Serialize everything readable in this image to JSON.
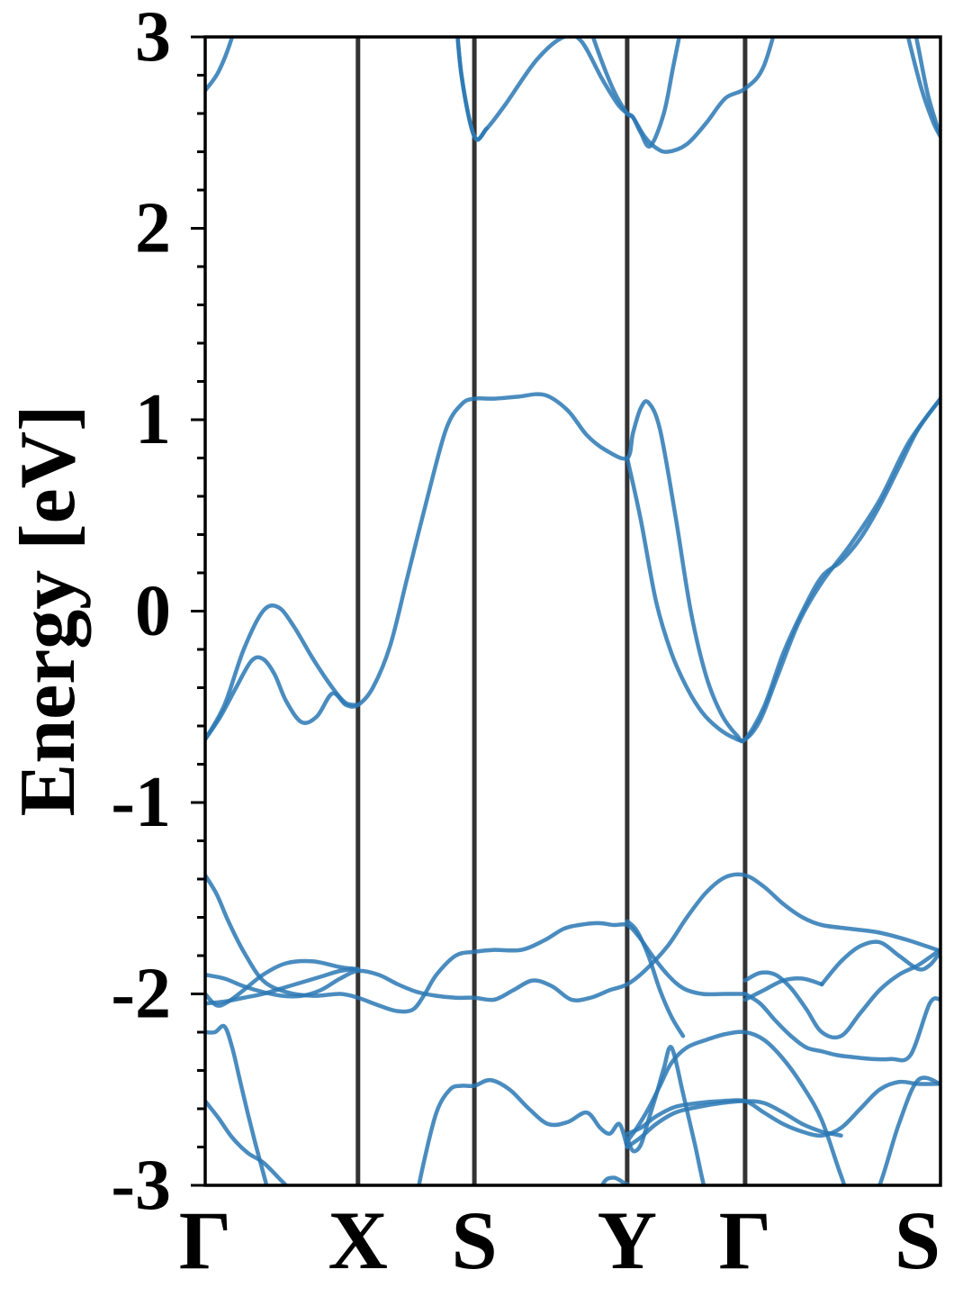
{
  "chart_data": {
    "type": "line",
    "title": "",
    "xlabel": "",
    "ylabel": "Energy [eV]",
    "ylim": [
      -3,
      3
    ],
    "y_ticks": [
      "-3",
      "-2",
      "-1",
      "0",
      "1",
      "2",
      "3"
    ],
    "y_minor_step": 0.2,
    "grid": false,
    "kpath_labels": [
      "Γ",
      "X",
      "S",
      "Y",
      "Γ",
      "S"
    ],
    "kpath_positions": [
      0,
      0.793,
      1.397,
      2.19,
      2.802,
      3.816
    ],
    "colors": {
      "band": "#2a78b4",
      "kline": "#333333"
    },
    "series": [
      {
        "x": [
          0,
          0.07,
          0.14,
          0.19
        ],
        "y": [
          2.72,
          2.82,
          3.0,
          3.2
        ]
      },
      {
        "x": [
          1.295,
          1.33,
          1.397,
          1.46,
          1.56,
          1.72,
          1.86,
          1.95,
          2.06,
          2.14,
          2.19,
          2.22,
          2.28,
          2.34,
          2.4,
          2.5,
          2.6,
          2.7,
          2.802,
          2.9,
          3.0
        ],
        "y": [
          3.2,
          2.8,
          2.48,
          2.52,
          2.65,
          2.88,
          3.0,
          2.98,
          2.78,
          2.65,
          2.6,
          2.58,
          2.48,
          2.42,
          2.4,
          2.44,
          2.55,
          2.68,
          2.73,
          2.85,
          3.2
        ]
      },
      {
        "x": [
          1.295,
          1.33,
          1.397,
          1.46
        ],
        "y": [
          3.2,
          2.8,
          2.48,
          2.52
        ]
      },
      {
        "x": [
          1.95,
          2.03,
          2.12,
          2.19,
          2.22,
          2.26,
          2.31,
          2.38,
          2.43,
          2.5
        ],
        "y": [
          3.2,
          2.95,
          2.72,
          2.6,
          2.58,
          2.5,
          2.43,
          2.6,
          2.85,
          3.2
        ]
      },
      {
        "x": [
          3.6,
          3.66,
          3.72,
          3.78,
          3.816
        ],
        "y": [
          3.2,
          2.95,
          2.72,
          2.55,
          2.48
        ]
      },
      {
        "x": [
          3.65,
          3.7,
          3.75,
          3.8,
          3.816
        ],
        "y": [
          3.2,
          2.95,
          2.7,
          2.53,
          2.48
        ]
      },
      {
        "x": [
          0,
          0.08,
          0.16,
          0.24,
          0.3,
          0.36,
          0.42,
          0.5,
          0.58,
          0.66,
          0.73,
          0.793,
          0.87,
          0.96,
          1.05,
          1.15,
          1.25,
          1.33,
          1.397,
          1.5,
          1.62,
          1.76,
          1.88,
          1.98,
          2.08,
          2.19,
          2.22,
          2.26,
          2.3,
          2.36,
          2.44,
          2.52,
          2.6,
          2.68,
          2.76,
          2.802,
          2.9,
          3.0,
          3.1,
          3.2,
          3.3,
          3.4,
          3.5,
          3.6,
          3.7,
          3.816
        ],
        "y": [
          -0.67,
          -0.55,
          -0.4,
          -0.26,
          -0.25,
          -0.33,
          -0.47,
          -0.58,
          -0.55,
          -0.43,
          -0.49,
          -0.49,
          -0.4,
          -0.18,
          0.18,
          0.58,
          0.95,
          1.08,
          1.11,
          1.11,
          1.12,
          1.13,
          1.05,
          0.92,
          0.84,
          0.8,
          0.93,
          1.06,
          1.09,
          0.95,
          0.5,
          0.0,
          -0.34,
          -0.54,
          -0.65,
          -0.67,
          -0.5,
          -0.22,
          0.0,
          0.18,
          0.26,
          0.38,
          0.55,
          0.75,
          0.95,
          1.11
        ]
      },
      {
        "x": [
          0,
          0.1,
          0.2,
          0.3,
          0.38,
          0.46,
          0.56,
          0.66,
          0.73,
          0.793
        ],
        "y": [
          -0.67,
          -0.49,
          -0.2,
          0.0,
          0.02,
          -0.08,
          -0.25,
          -0.4,
          -0.48,
          -0.49
        ]
      },
      {
        "x": [
          2.19,
          2.26,
          2.34,
          2.42,
          2.5,
          2.58,
          2.66,
          2.74,
          2.802,
          2.88,
          2.97,
          3.08,
          3.2,
          3.35,
          3.5,
          3.65,
          3.816
        ],
        "y": [
          0.8,
          0.48,
          0.05,
          -0.22,
          -0.4,
          -0.53,
          -0.61,
          -0.66,
          -0.67,
          -0.57,
          -0.34,
          -0.06,
          0.15,
          0.35,
          0.58,
          0.88,
          1.11
        ]
      },
      {
        "x": [
          0,
          0.06,
          0.12,
          0.2,
          0.3,
          0.42,
          0.56,
          0.7,
          0.793,
          0.9,
          1.0,
          1.08,
          1.14,
          1.2,
          1.3,
          1.397,
          1.5,
          1.64,
          1.76,
          1.86,
          1.94,
          2.04,
          2.12,
          2.19,
          2.25,
          2.32,
          2.4,
          2.48,
          2.58,
          2.7,
          2.802
        ],
        "y": [
          -1.38,
          -1.48,
          -1.62,
          -1.78,
          -1.93,
          -1.99,
          -2.01,
          -2.0,
          -2.02,
          -2.06,
          -2.09,
          -2.08,
          -2.0,
          -1.9,
          -1.8,
          -1.78,
          -1.77,
          -1.77,
          -1.72,
          -1.66,
          -1.64,
          -1.63,
          -1.64,
          -1.64,
          -1.7,
          -1.8,
          -1.9,
          -1.97,
          -2.0,
          -2.0,
          -2.0
        ]
      },
      {
        "x": [
          0,
          0.1,
          0.2,
          0.3,
          0.4,
          0.5,
          0.6,
          0.7,
          0.793,
          0.9,
          1.0,
          1.1,
          1.2,
          1.3,
          1.397,
          1.5,
          1.6,
          1.7,
          1.8,
          1.9,
          2.0,
          2.1,
          2.19,
          2.28,
          2.4,
          2.5,
          2.6,
          2.7,
          2.802,
          2.9,
          3.0,
          3.1,
          3.2,
          3.35,
          3.5,
          3.65,
          3.8,
          3.816
        ],
        "y": [
          -1.9,
          -1.92,
          -1.96,
          -1.99,
          -2.01,
          -2.01,
          -1.98,
          -1.92,
          -1.88,
          -1.9,
          -1.95,
          -1.99,
          -2.01,
          -2.02,
          -2.02,
          -2.03,
          -1.98,
          -1.93,
          -1.96,
          -2.03,
          -2.02,
          -1.98,
          -1.95,
          -1.88,
          -1.75,
          -1.6,
          -1.47,
          -1.39,
          -1.38,
          -1.44,
          -1.53,
          -1.6,
          -1.64,
          -1.66,
          -1.68,
          -1.72,
          -1.77,
          -1.77
        ]
      },
      {
        "x": [
          0,
          0.06,
          0.12,
          0.2,
          0.3,
          0.42,
          0.56,
          0.7,
          0.793
        ],
        "y": [
          -2.0,
          -2.06,
          -2.04,
          -1.98,
          -1.9,
          -1.84,
          -1.83,
          -1.86,
          -1.87
        ]
      },
      {
        "x": [
          0,
          0.1,
          0.2,
          0.3,
          0.4,
          0.5,
          0.6,
          0.7,
          0.793
        ],
        "y": [
          -2.05,
          -2.04,
          -2.02,
          -2.0,
          -1.97,
          -1.94,
          -1.91,
          -1.88,
          -1.87
        ]
      },
      {
        "x": [
          2.802,
          2.88,
          2.96,
          3.04,
          3.12,
          3.2,
          3.28,
          3.36,
          3.46,
          3.56,
          3.66,
          3.76,
          3.816
        ],
        "y": [
          -2.0,
          -2.05,
          -2.14,
          -2.22,
          -2.28,
          -2.3,
          -2.32,
          -2.33,
          -2.34,
          -2.34,
          -2.32,
          -2.05,
          -2.03
        ]
      },
      {
        "x": [
          2.802,
          2.88,
          2.96,
          3.04,
          3.12,
          3.2,
          3.3,
          3.4,
          3.5,
          3.6,
          3.7,
          3.8,
          3.816
        ],
        "y": [
          -1.93,
          -1.89,
          -1.9,
          -1.97,
          -2.08,
          -2.2,
          -2.22,
          -2.1,
          -1.98,
          -1.9,
          -1.85,
          -1.78,
          -1.77
        ]
      },
      {
        "x": [
          2.19,
          2.24,
          2.3,
          2.36,
          2.42,
          2.48
        ],
        "y": [
          -1.62,
          -1.67,
          -1.8,
          -1.98,
          -2.12,
          -2.22
        ]
      },
      {
        "x": [
          3.2,
          3.3,
          3.4,
          3.5,
          3.6,
          3.7,
          3.76,
          3.816
        ],
        "y": [
          -1.95,
          -1.83,
          -1.75,
          -1.73,
          -1.8,
          -1.87,
          -1.85,
          -1.78
        ]
      },
      {
        "x": [
          2.802,
          2.9,
          3.0,
          3.1,
          3.2
        ],
        "y": [
          -2.03,
          -1.98,
          -1.93,
          -1.92,
          -1.95
        ]
      },
      {
        "x": [
          0,
          0.05,
          0.1,
          0.14,
          0.18,
          0.22,
          0.26,
          0.3,
          0.34,
          0.38
        ],
        "y": [
          -2.2,
          -2.2,
          -2.17,
          -2.28,
          -2.45,
          -2.62,
          -2.78,
          -2.93,
          -3.08,
          -3.2
        ]
      },
      {
        "x": [
          0,
          0.07,
          0.14,
          0.22,
          0.3,
          0.38,
          0.46,
          0.54
        ],
        "y": [
          -2.56,
          -2.65,
          -2.75,
          -2.83,
          -2.88,
          -2.96,
          -3.05,
          -3.2
        ]
      },
      {
        "x": [
          1.07,
          1.13,
          1.2,
          1.27,
          1.33,
          1.397,
          1.48,
          1.58,
          1.68,
          1.78,
          1.88,
          1.98,
          2.05,
          2.1,
          2.15,
          2.19
        ],
        "y": [
          -3.2,
          -2.9,
          -2.62,
          -2.5,
          -2.48,
          -2.48,
          -2.45,
          -2.5,
          -2.6,
          -2.68,
          -2.67,
          -2.62,
          -2.7,
          -2.73,
          -2.68,
          -2.8
        ]
      },
      {
        "x": [
          2.19,
          2.24,
          2.3,
          2.36,
          2.42,
          2.5,
          2.6,
          2.7,
          2.802,
          2.9,
          3.0,
          3.1,
          3.2,
          3.3,
          3.4,
          3.5,
          3.6,
          3.7,
          3.816
        ],
        "y": [
          -2.77,
          -2.7,
          -2.6,
          -2.48,
          -2.36,
          -2.28,
          -2.24,
          -2.21,
          -2.2,
          -2.24,
          -2.34,
          -2.48,
          -2.66,
          -2.95,
          -3.2,
          -3.0,
          -2.68,
          -2.45,
          -2.47
        ]
      },
      {
        "x": [
          2.19,
          2.26,
          2.34,
          2.44,
          2.56,
          2.68,
          2.802,
          2.9,
          3.0,
          3.1,
          3.2,
          3.3,
          3.4,
          3.5,
          3.6,
          3.7,
          3.816
        ],
        "y": [
          -2.73,
          -2.7,
          -2.64,
          -2.59,
          -2.57,
          -2.56,
          -2.56,
          -2.62,
          -2.68,
          -2.72,
          -2.74,
          -2.7,
          -2.6,
          -2.5,
          -2.46,
          -2.47,
          -2.47
        ]
      },
      {
        "x": [
          2.19,
          2.22,
          2.26,
          2.3,
          2.34,
          2.38,
          2.42,
          2.48,
          2.54,
          2.6,
          2.66
        ],
        "y": [
          -2.75,
          -2.82,
          -2.79,
          -2.66,
          -2.53,
          -2.39,
          -2.28,
          -2.52,
          -2.78,
          -3.05,
          -3.2
        ]
      },
      {
        "x": [
          2.19,
          2.26,
          2.34,
          2.44,
          2.56,
          2.68,
          2.802,
          2.9,
          3.0,
          3.1,
          3.2,
          3.25,
          3.3
        ],
        "y": [
          -2.8,
          -2.75,
          -2.68,
          -2.62,
          -2.59,
          -2.57,
          -2.56,
          -2.57,
          -2.62,
          -2.68,
          -2.72,
          -2.73,
          -2.74
        ]
      },
      {
        "x": [
          2.0,
          2.06,
          2.12,
          2.19,
          2.19,
          2.25
        ],
        "y": [
          -3.2,
          -3.0,
          -2.96,
          -3.0,
          -3.0,
          -3.12
        ]
      }
    ]
  }
}
